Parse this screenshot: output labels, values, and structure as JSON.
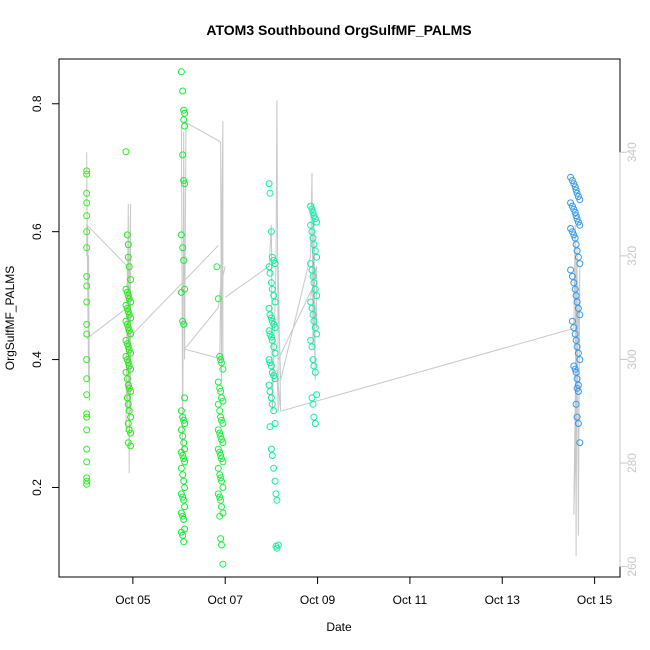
{
  "chart_data": {
    "type": "scatter",
    "title": "ATOM3 Southbound OrgSulfMF_PALMS",
    "xlabel": "Date",
    "ylabel": "OrgSulfMF_PALMS",
    "x_tick_labels": [
      "Oct 05",
      "Oct 07",
      "Oct 09",
      "Oct 11",
      "Oct 13",
      "Oct 15"
    ],
    "x_tick_values": [
      5,
      7,
      9,
      11,
      13,
      15
    ],
    "xlim": [
      3.4,
      15.55
    ],
    "y_tick_labels": [
      "0.2",
      "0.4",
      "0.6",
      "0.8"
    ],
    "y_tick_values": [
      0.2,
      0.4,
      0.6,
      0.8
    ],
    "ylim": [
      0.06,
      0.87
    ],
    "y2_tick_labels": [
      "260",
      "280",
      "300",
      "320",
      "340"
    ],
    "y2_tick_values": [
      260,
      280,
      300,
      320,
      340
    ],
    "y2lim": [
      258,
      358
    ],
    "line_color": "#c8c8c8",
    "colors": {
      "day4": "#33ee22",
      "day5": "#22ee11",
      "day6": "#11ee33",
      "day7": "#22ee44",
      "day8": "#11ee99",
      "day9": "#11eeaa",
      "day14": "#3399ee"
    },
    "series": [
      {
        "color_key": "day4",
        "x": [
          4.0,
          4.0,
          4.0,
          4.0,
          4.0,
          4.0,
          4.0,
          4.0,
          4.0,
          4.0,
          4.0,
          4.0,
          4.0,
          4.0,
          4.0,
          4.0,
          4.0,
          4.0,
          4.0,
          4.0,
          4.0,
          4.0,
          4.0
        ],
        "y": [
          0.69,
          0.695,
          0.66,
          0.645,
          0.625,
          0.6,
          0.575,
          0.53,
          0.515,
          0.49,
          0.455,
          0.44,
          0.4,
          0.37,
          0.345,
          0.315,
          0.31,
          0.29,
          0.26,
          0.24,
          0.215,
          0.21,
          0.205
        ]
      },
      {
        "color_key": "day5",
        "x": [
          4.85,
          4.88,
          4.9,
          4.9,
          4.92,
          4.95,
          4.85,
          4.88,
          4.9,
          4.92,
          4.95,
          4.85,
          4.88,
          4.9,
          4.92,
          4.95,
          4.85,
          4.88,
          4.9,
          4.92,
          4.95,
          4.85,
          4.88,
          4.9,
          4.92,
          4.95,
          4.85,
          4.88,
          4.9,
          4.92,
          4.95,
          4.85,
          4.88,
          4.9,
          4.92,
          4.95,
          4.88,
          4.9,
          4.92,
          4.95,
          4.9,
          4.92,
          4.95,
          4.9,
          4.95
        ],
        "y": [
          0.725,
          0.595,
          0.58,
          0.56,
          0.545,
          0.525,
          0.51,
          0.505,
          0.5,
          0.495,
          0.49,
          0.485,
          0.48,
          0.475,
          0.47,
          0.465,
          0.46,
          0.455,
          0.45,
          0.445,
          0.44,
          0.43,
          0.425,
          0.42,
          0.415,
          0.41,
          0.405,
          0.4,
          0.395,
          0.39,
          0.385,
          0.38,
          0.37,
          0.36,
          0.355,
          0.35,
          0.34,
          0.33,
          0.32,
          0.31,
          0.3,
          0.29,
          0.285,
          0.27,
          0.265
        ]
      },
      {
        "color_key": "day6",
        "x": [
          6.05,
          6.08,
          6.1,
          6.12,
          6.1,
          6.12,
          6.08,
          6.1,
          6.12,
          6.05,
          6.08,
          6.1,
          6.12,
          6.05,
          6.08,
          6.1,
          6.12,
          6.05,
          6.08,
          6.1,
          6.12,
          6.05,
          6.08,
          6.1,
          6.12,
          6.05,
          6.08,
          6.1,
          6.12,
          6.05,
          6.08,
          6.1,
          6.12,
          6.05,
          6.08,
          6.1,
          6.12,
          6.05,
          6.08,
          6.1,
          6.12,
          6.05,
          6.08,
          6.1
        ],
        "y": [
          0.85,
          0.82,
          0.79,
          0.785,
          0.775,
          0.765,
          0.72,
          0.68,
          0.675,
          0.595,
          0.575,
          0.555,
          0.51,
          0.505,
          0.46,
          0.455,
          0.34,
          0.32,
          0.31,
          0.305,
          0.3,
          0.29,
          0.28,
          0.27,
          0.26,
          0.255,
          0.25,
          0.245,
          0.24,
          0.23,
          0.22,
          0.21,
          0.2,
          0.19,
          0.185,
          0.18,
          0.17,
          0.16,
          0.155,
          0.15,
          0.135,
          0.13,
          0.125,
          0.115
        ]
      },
      {
        "color_key": "day7",
        "x": [
          6.82,
          6.85,
          6.88,
          6.9,
          6.92,
          6.95,
          6.85,
          6.88,
          6.9,
          6.92,
          6.95,
          6.85,
          6.88,
          6.9,
          6.92,
          6.95,
          6.85,
          6.88,
          6.9,
          6.92,
          6.95,
          6.85,
          6.88,
          6.9,
          6.92,
          6.95,
          6.85,
          6.88,
          6.9,
          6.92,
          6.95,
          6.85,
          6.88,
          6.9,
          6.92,
          6.95,
          6.88,
          6.9,
          6.92,
          6.95
        ],
        "y": [
          0.545,
          0.495,
          0.405,
          0.4,
          0.395,
          0.385,
          0.365,
          0.355,
          0.35,
          0.34,
          0.335,
          0.33,
          0.32,
          0.31,
          0.305,
          0.3,
          0.29,
          0.285,
          0.28,
          0.275,
          0.27,
          0.26,
          0.255,
          0.25,
          0.245,
          0.24,
          0.23,
          0.22,
          0.215,
          0.21,
          0.2,
          0.19,
          0.185,
          0.18,
          0.17,
          0.16,
          0.155,
          0.12,
          0.11,
          0.08
        ]
      },
      {
        "color_key": "day8",
        "x": [
          7.95,
          7.97,
          8.0,
          8.02,
          8.05,
          8.08,
          7.95,
          7.97,
          8.0,
          8.02,
          8.05,
          8.08,
          7.95,
          7.97,
          8.0,
          8.02,
          8.05,
          8.08,
          7.95,
          7.97,
          8.0,
          8.02,
          8.05,
          8.08,
          7.95,
          7.97,
          8.0,
          8.02,
          8.05,
          8.08,
          7.95,
          7.97,
          8.0,
          8.02,
          8.05,
          8.08,
          7.97,
          8.0,
          8.02,
          8.05,
          8.08,
          8.1,
          8.12,
          8.15,
          8.1,
          8.12
        ],
        "y": [
          0.675,
          0.66,
          0.6,
          0.56,
          0.555,
          0.55,
          0.545,
          0.535,
          0.52,
          0.51,
          0.5,
          0.49,
          0.48,
          0.47,
          0.465,
          0.46,
          0.455,
          0.45,
          0.445,
          0.44,
          0.435,
          0.43,
          0.42,
          0.41,
          0.4,
          0.395,
          0.39,
          0.38,
          0.375,
          0.37,
          0.36,
          0.35,
          0.34,
          0.33,
          0.32,
          0.3,
          0.295,
          0.26,
          0.25,
          0.23,
          0.21,
          0.19,
          0.18,
          0.11,
          0.108,
          0.105
        ]
      },
      {
        "color_key": "day9",
        "x": [
          8.85,
          8.88,
          8.9,
          8.92,
          8.95,
          8.98,
          8.85,
          8.88,
          8.9,
          8.92,
          8.95,
          8.98,
          8.85,
          8.88,
          8.9,
          8.92,
          8.95,
          8.98,
          8.85,
          8.88,
          8.9,
          8.92,
          8.95,
          8.98,
          8.85,
          8.88,
          8.9,
          8.92,
          8.95,
          8.98,
          8.88,
          8.9,
          8.92,
          8.95
        ],
        "y": [
          0.64,
          0.635,
          0.63,
          0.625,
          0.62,
          0.615,
          0.61,
          0.6,
          0.59,
          0.58,
          0.57,
          0.56,
          0.55,
          0.54,
          0.53,
          0.52,
          0.51,
          0.5,
          0.49,
          0.48,
          0.47,
          0.46,
          0.45,
          0.44,
          0.43,
          0.42,
          0.4,
          0.39,
          0.38,
          0.345,
          0.34,
          0.33,
          0.31,
          0.3
        ]
      },
      {
        "color_key": "day14",
        "x": [
          14.48,
          14.52,
          14.55,
          14.58,
          14.6,
          14.62,
          14.65,
          14.68,
          14.48,
          14.52,
          14.55,
          14.58,
          14.6,
          14.62,
          14.65,
          14.68,
          14.48,
          14.52,
          14.55,
          14.58,
          14.6,
          14.62,
          14.65,
          14.68,
          14.48,
          14.52,
          14.55,
          14.58,
          14.6,
          14.62,
          14.65,
          14.68,
          14.52,
          14.55,
          14.58,
          14.6,
          14.62,
          14.65,
          14.68,
          14.55,
          14.58,
          14.6,
          14.62,
          14.65,
          14.62,
          14.65,
          14.6,
          14.62,
          14.65,
          14.68
        ],
        "y": [
          0.685,
          0.68,
          0.675,
          0.67,
          0.665,
          0.66,
          0.655,
          0.65,
          0.645,
          0.64,
          0.635,
          0.63,
          0.625,
          0.62,
          0.615,
          0.61,
          0.605,
          0.6,
          0.595,
          0.59,
          0.58,
          0.57,
          0.56,
          0.55,
          0.54,
          0.53,
          0.52,
          0.51,
          0.5,
          0.49,
          0.48,
          0.47,
          0.46,
          0.45,
          0.44,
          0.43,
          0.42,
          0.41,
          0.4,
          0.39,
          0.385,
          0.38,
          0.37,
          0.36,
          0.355,
          0.35,
          0.33,
          0.31,
          0.3,
          0.27
        ]
      }
    ]
  }
}
